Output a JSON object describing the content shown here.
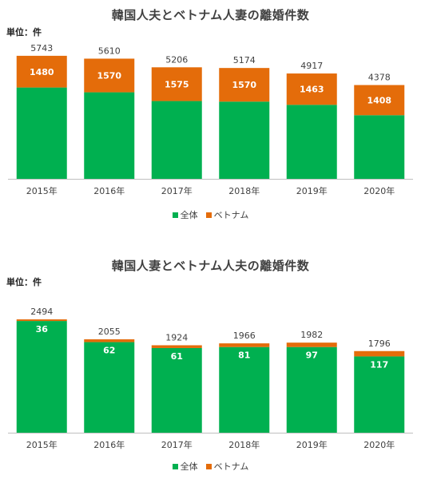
{
  "colors": {
    "total": "#00b050",
    "vietnam": "#e46c0a",
    "axis": "#bfbfbf",
    "text": "#404040"
  },
  "chart_data": [
    {
      "type": "bar",
      "title": "韓国人夫とベトナム人妻の離婚件数",
      "unit_label": "単位：件",
      "categories": [
        "2015年",
        "2016年",
        "2017年",
        "2018年",
        "2019年",
        "2020年"
      ],
      "series": [
        {
          "name": "全体",
          "values": [
            5743,
            5610,
            5206,
            5174,
            4917,
            4378
          ]
        },
        {
          "name": "ベトナム",
          "values": [
            1480,
            1570,
            1575,
            1570,
            1463,
            1408
          ]
        }
      ],
      "legend": [
        "全体",
        "ベトナム"
      ],
      "legend_position": "bottom",
      "ylim": [
        0,
        6000
      ]
    },
    {
      "type": "bar",
      "title": "韓国人妻とベトナム人夫の離婚件数",
      "unit_label": "単位：件",
      "categories": [
        "2015年",
        "2016年",
        "2017年",
        "2018年",
        "2019年",
        "2020年"
      ],
      "series": [
        {
          "name": "全体",
          "values": [
            2494,
            2055,
            1924,
            1966,
            1982,
            1796
          ]
        },
        {
          "name": "ベトナム",
          "values": [
            36,
            62,
            61,
            81,
            97,
            117
          ]
        }
      ],
      "legend": [
        "全体",
        "ベトナム"
      ],
      "legend_position": "bottom",
      "ylim": [
        0,
        2600
      ]
    }
  ]
}
